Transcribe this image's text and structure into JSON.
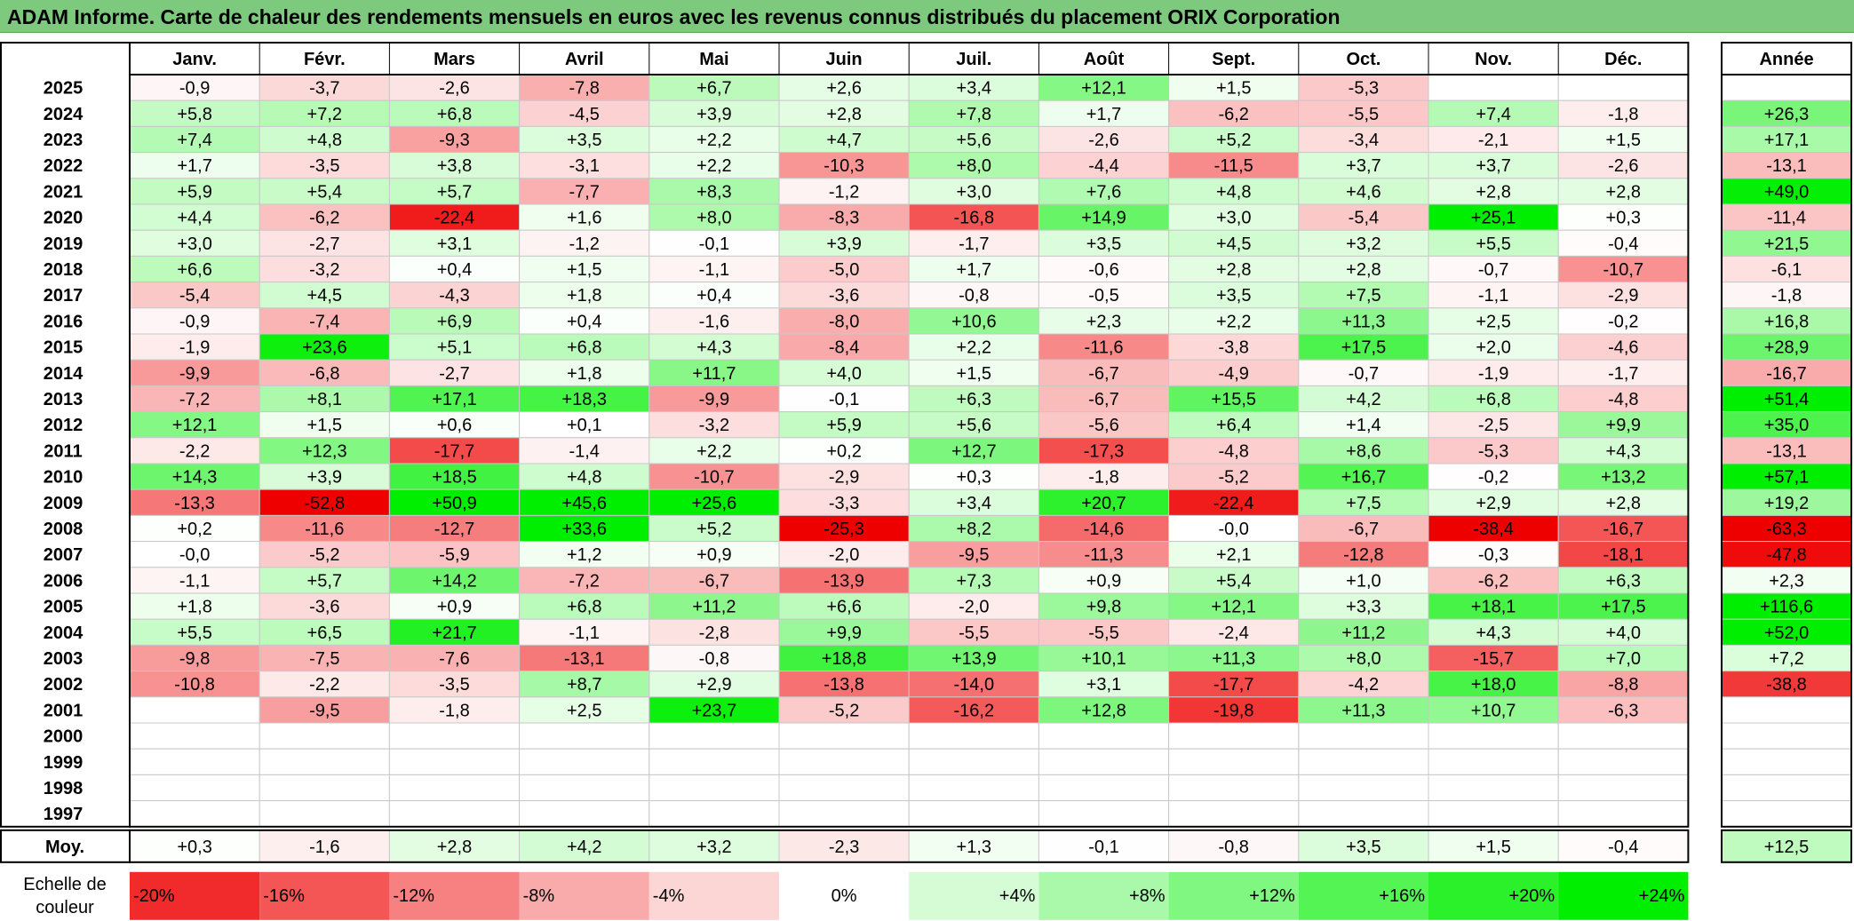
{
  "title": "ADAM Informe. Carte de chaleur des rendements mensuels en euros avec les revenus connus distribués du placement ORIX Corporation",
  "colors": {
    "title_bg": "#7dc97d",
    "positive_max": "#00ee00",
    "negative_max": "#ee0000",
    "neutral": "#ffffff"
  },
  "chart_data": {
    "type": "heatmap",
    "columns": [
      "Janv.",
      "Févr.",
      "Mars",
      "Avril",
      "Mai",
      "Juin",
      "Juil.",
      "Août",
      "Sept.",
      "Oct.",
      "Nov.",
      "Déc."
    ],
    "year_header": "Année",
    "rows": [
      {
        "year": "2025",
        "values": [
          "-0,9",
          "-3,7",
          "-2,6",
          "-7,8",
          "+6,7",
          "+2,6",
          "+3,4",
          "+12,1",
          "+1,5",
          "-5,3",
          "",
          ""
        ],
        "annual": ""
      },
      {
        "year": "2024",
        "values": [
          "+5,8",
          "+7,2",
          "+6,8",
          "-4,5",
          "+3,9",
          "+2,8",
          "+7,8",
          "+1,7",
          "-6,2",
          "-5,5",
          "+7,4",
          "-1,8"
        ],
        "annual": "+26,3"
      },
      {
        "year": "2023",
        "values": [
          "+7,4",
          "+4,8",
          "-9,3",
          "+3,5",
          "+2,2",
          "+4,7",
          "+5,6",
          "-2,6",
          "+5,2",
          "-3,4",
          "-2,1",
          "+1,5"
        ],
        "annual": "+17,1"
      },
      {
        "year": "2022",
        "values": [
          "+1,7",
          "-3,5",
          "+3,8",
          "-3,1",
          "+2,2",
          "-10,3",
          "+8,0",
          "-4,4",
          "-11,5",
          "+3,7",
          "+3,7",
          "-2,6"
        ],
        "annual": "-13,1"
      },
      {
        "year": "2021",
        "values": [
          "+5,9",
          "+5,4",
          "+5,7",
          "-7,7",
          "+8,3",
          "-1,2",
          "+3,0",
          "+7,6",
          "+4,8",
          "+4,6",
          "+2,8",
          "+2,8"
        ],
        "annual": "+49,0"
      },
      {
        "year": "2020",
        "values": [
          "+4,4",
          "-6,2",
          "-22,4",
          "+1,6",
          "+8,0",
          "-8,3",
          "-16,8",
          "+14,9",
          "+3,0",
          "-5,4",
          "+25,1",
          "+0,3"
        ],
        "annual": "-11,4"
      },
      {
        "year": "2019",
        "values": [
          "+3,0",
          "-2,7",
          "+3,1",
          "-1,2",
          "-0,1",
          "+3,9",
          "-1,7",
          "+3,5",
          "+4,5",
          "+3,2",
          "+5,5",
          "-0,4"
        ],
        "annual": "+21,5"
      },
      {
        "year": "2018",
        "values": [
          "+6,6",
          "-3,2",
          "+0,4",
          "+1,5",
          "-1,1",
          "-5,0",
          "+1,7",
          "-0,6",
          "+2,8",
          "+2,8",
          "-0,7",
          "-10,7"
        ],
        "annual": "-6,1"
      },
      {
        "year": "2017",
        "values": [
          "-5,4",
          "+4,5",
          "-4,3",
          "+1,8",
          "+0,4",
          "-3,6",
          "-0,8",
          "-0,5",
          "+3,5",
          "+7,5",
          "-1,1",
          "-2,9"
        ],
        "annual": "-1,8"
      },
      {
        "year": "2016",
        "values": [
          "-0,9",
          "-7,4",
          "+6,9",
          "+0,4",
          "-1,6",
          "-8,0",
          "+10,6",
          "+2,3",
          "+2,2",
          "+11,3",
          "+2,5",
          "-0,2"
        ],
        "annual": "+16,8"
      },
      {
        "year": "2015",
        "values": [
          "-1,9",
          "+23,6",
          "+5,1",
          "+6,8",
          "+4,3",
          "-8,4",
          "+2,2",
          "-11,6",
          "-3,8",
          "+17,5",
          "+2,0",
          "-4,6"
        ],
        "annual": "+28,9"
      },
      {
        "year": "2014",
        "values": [
          "-9,9",
          "-6,8",
          "-2,7",
          "+1,8",
          "+11,7",
          "+4,0",
          "+1,5",
          "-6,7",
          "-4,9",
          "-0,7",
          "-1,9",
          "-1,7"
        ],
        "annual": "-16,7"
      },
      {
        "year": "2013",
        "values": [
          "-7,2",
          "+8,1",
          "+17,1",
          "+18,3",
          "-9,9",
          "-0,1",
          "+6,3",
          "-6,7",
          "+15,5",
          "+4,2",
          "+6,8",
          "-4,8"
        ],
        "annual": "+51,4"
      },
      {
        "year": "2012",
        "values": [
          "+12,1",
          "+1,5",
          "+0,6",
          "+0,1",
          "-3,2",
          "+5,9",
          "+5,6",
          "-5,6",
          "+6,4",
          "+1,4",
          "-2,5",
          "+9,9"
        ],
        "annual": "+35,0"
      },
      {
        "year": "2011",
        "values": [
          "-2,2",
          "+12,3",
          "-17,7",
          "-1,4",
          "+2,2",
          "+0,2",
          "+12,7",
          "-17,3",
          "-4,8",
          "+8,6",
          "-5,3",
          "+4,3"
        ],
        "annual": "-13,1"
      },
      {
        "year": "2010",
        "values": [
          "+14,3",
          "+3,9",
          "+18,5",
          "+4,8",
          "-10,7",
          "-2,9",
          "+0,3",
          "-1,8",
          "-5,2",
          "+16,7",
          "-0,2",
          "+13,2"
        ],
        "annual": "+57,1"
      },
      {
        "year": "2009",
        "values": [
          "-13,3",
          "-52,8",
          "+50,9",
          "+45,6",
          "+25,6",
          "-3,3",
          "+3,4",
          "+20,7",
          "-22,4",
          "+7,5",
          "+2,9",
          "+2,8"
        ],
        "annual": "+19,2"
      },
      {
        "year": "2008",
        "values": [
          "+0,2",
          "-11,6",
          "-12,7",
          "+33,6",
          "+5,2",
          "-25,3",
          "+8,2",
          "-14,6",
          "-0,0",
          "-6,7",
          "-38,4",
          "-16,7"
        ],
        "annual": "-63,3"
      },
      {
        "year": "2007",
        "values": [
          "-0,0",
          "-5,2",
          "-5,9",
          "+1,2",
          "+0,9",
          "-2,0",
          "-9,5",
          "-11,3",
          "+2,1",
          "-12,8",
          "-0,3",
          "-18,1"
        ],
        "annual": "-47,8"
      },
      {
        "year": "2006",
        "values": [
          "-1,1",
          "+5,7",
          "+14,2",
          "-7,2",
          "-6,7",
          "-13,9",
          "+7,3",
          "+0,9",
          "+5,4",
          "+1,0",
          "-6,2",
          "+6,3"
        ],
        "annual": "+2,3"
      },
      {
        "year": "2005",
        "values": [
          "+1,8",
          "-3,6",
          "+0,9",
          "+6,8",
          "+11,2",
          "+6,6",
          "-2,0",
          "+9,8",
          "+12,1",
          "+3,3",
          "+18,1",
          "+17,5"
        ],
        "annual": "+116,6"
      },
      {
        "year": "2004",
        "values": [
          "+5,5",
          "+6,5",
          "+21,7",
          "-1,1",
          "-2,8",
          "+9,9",
          "-5,5",
          "-5,5",
          "-2,4",
          "+11,2",
          "+4,3",
          "+4,0"
        ],
        "annual": "+52,0"
      },
      {
        "year": "2003",
        "values": [
          "-9,8",
          "-7,5",
          "-7,6",
          "-13,1",
          "-0,8",
          "+18,8",
          "+13,9",
          "+10,1",
          "+11,3",
          "+8,0",
          "-15,7",
          "+7,0"
        ],
        "annual": "+7,2"
      },
      {
        "year": "2002",
        "values": [
          "-10,8",
          "-2,2",
          "-3,5",
          "+8,7",
          "+2,9",
          "-13,8",
          "-14,0",
          "+3,1",
          "-17,7",
          "-4,2",
          "+18,0",
          "-8,8"
        ],
        "annual": "-38,8"
      },
      {
        "year": "2001",
        "values": [
          "",
          "-9,5",
          "-1,8",
          "+2,5",
          "+23,7",
          "-5,2",
          "-16,2",
          "+12,8",
          "-19,8",
          "+11,3",
          "+10,7",
          "-6,3"
        ],
        "annual": ""
      },
      {
        "year": "2000",
        "values": [
          "",
          "",
          "",
          "",
          "",
          "",
          "",
          "",
          "",
          "",
          "",
          ""
        ],
        "annual": ""
      },
      {
        "year": "1999",
        "values": [
          "",
          "",
          "",
          "",
          "",
          "",
          "",
          "",
          "",
          "",
          "",
          ""
        ],
        "annual": ""
      },
      {
        "year": "1998",
        "values": [
          "",
          "",
          "",
          "",
          "",
          "",
          "",
          "",
          "",
          "",
          "",
          ""
        ],
        "annual": ""
      },
      {
        "year": "1997",
        "values": [
          "",
          "",
          "",
          "",
          "",
          "",
          "",
          "",
          "",
          "",
          "",
          ""
        ],
        "annual": ""
      }
    ],
    "average": {
      "label": "Moy.",
      "values": [
        "+0,3",
        "-1,6",
        "+2,8",
        "+4,2",
        "+3,2",
        "-2,3",
        "+1,3",
        "-0,1",
        "-0,8",
        "+3,5",
        "+1,5",
        "-0,4"
      ],
      "annual": "+12,5"
    },
    "scale": {
      "label": [
        "Echelle de",
        "couleur"
      ],
      "labels": [
        "-20%",
        "-16%",
        "-12%",
        "-8%",
        "-4%",
        "0%",
        "+4%",
        "+8%",
        "+12%",
        "+16%",
        "+20%",
        "+24%"
      ],
      "values": [
        -20,
        -16,
        -12,
        -8,
        -4,
        0,
        4,
        8,
        12,
        16,
        20,
        24
      ]
    }
  }
}
